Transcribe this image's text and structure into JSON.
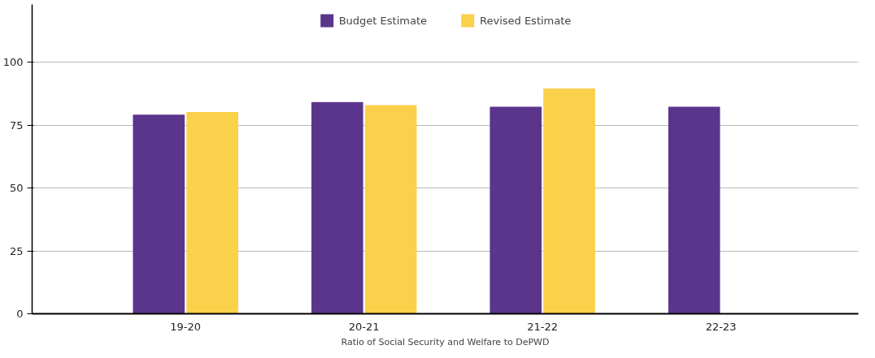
{
  "chart_data": {
    "type": "bar",
    "xlabel": "Ratio of Social Security and Welfare to DePWD",
    "categories": [
      "19-20",
      "20-21",
      "21-22",
      "22-23"
    ],
    "series": [
      {
        "name": "Budget Estimate",
        "color": "#5b358c",
        "values": [
          79.2,
          84.2,
          82.3,
          82.3
        ]
      },
      {
        "name": "Revised Estimate",
        "color": "#fbd04a",
        "values": [
          80.2,
          83.0,
          89.6,
          null
        ]
      }
    ],
    "ylim": [
      0,
      123
    ],
    "yticks": [
      0,
      25,
      50,
      75,
      100
    ],
    "grid": "y",
    "legend": "top"
  }
}
